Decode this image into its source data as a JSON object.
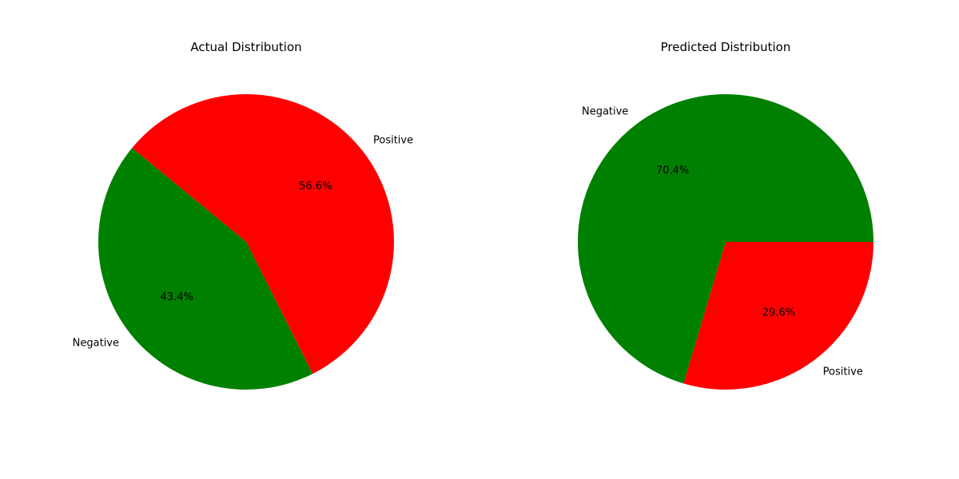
{
  "chart_data": [
    {
      "type": "pie",
      "title": "Actual Distribution",
      "start_angle_deg": 140.5,
      "slices": [
        {
          "label": "Negative",
          "value": 43.4,
          "percent_label": "43.4%",
          "color": "#008000"
        },
        {
          "label": "Positive",
          "value": 56.6,
          "percent_label": "56.6%",
          "color": "#ff0000"
        }
      ]
    },
    {
      "type": "pie",
      "title": "Predicted Distribution",
      "start_angle_deg": 0,
      "slices": [
        {
          "label": "Negative",
          "value": 70.4,
          "percent_label": "70.4%",
          "color": "#008000"
        },
        {
          "label": "Positive",
          "value": 29.6,
          "percent_label": "29.6%",
          "color": "#ff0000"
        }
      ]
    }
  ]
}
